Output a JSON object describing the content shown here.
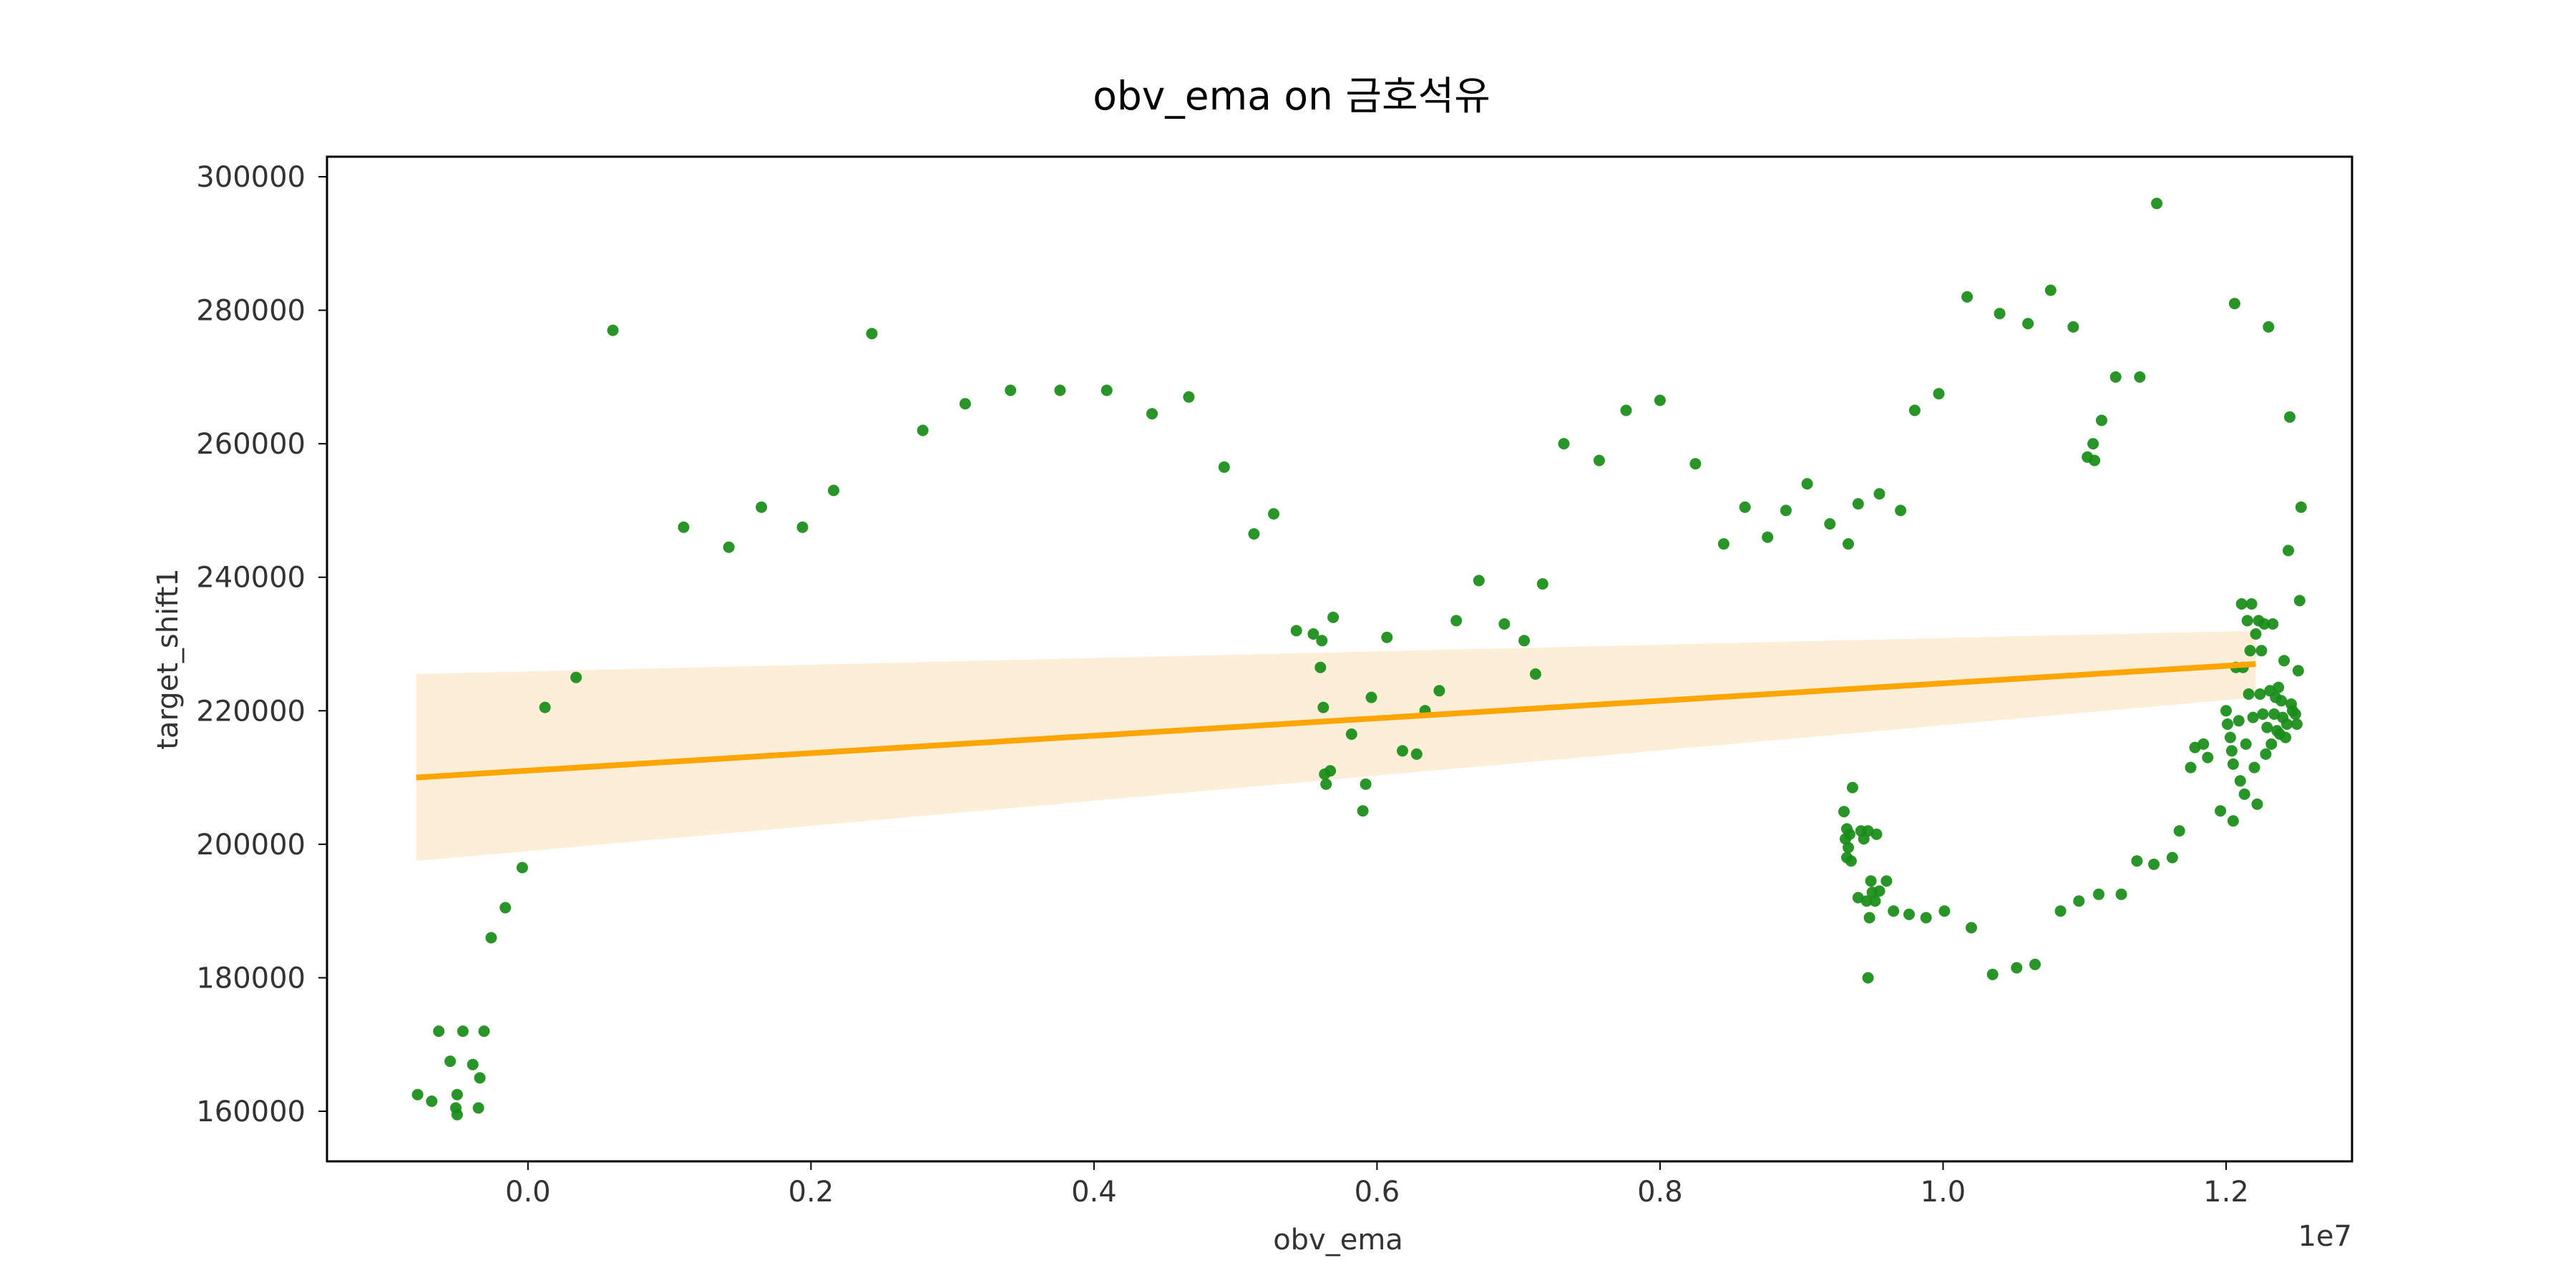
{
  "chart_data": {
    "type": "scatter",
    "title": "obv_ema on 금호석유",
    "xlabel": "obv_ema",
    "ylabel": "target_shift1",
    "x_offset_label": "1e7",
    "x_ticks": [
      0.0,
      0.2,
      0.4,
      0.6,
      0.8,
      1.0,
      1.2
    ],
    "x_tick_labels": [
      "0.0",
      "0.2",
      "0.4",
      "0.6",
      "0.8",
      "1.0",
      "1.2"
    ],
    "y_ticks": [
      160000,
      180000,
      200000,
      220000,
      240000,
      260000,
      280000,
      300000
    ],
    "y_tick_labels": [
      "160000",
      "180000",
      "200000",
      "220000",
      "240000",
      "260000",
      "280000",
      "300000"
    ],
    "xlim": [
      -0.142,
      1.289
    ],
    "ylim": [
      152500,
      303000
    ],
    "grid": false,
    "colors": {
      "points": "#178c17",
      "regression_line": "#ffa500",
      "confidence_band": "#fdebd0"
    },
    "regression": {
      "x": [
        -0.079,
        1.221
      ],
      "y": [
        210000,
        227000
      ],
      "ci_upper": [
        225500,
        232000
      ],
      "ci_lower": [
        197500,
        222000
      ]
    },
    "points": [
      [
        -0.078,
        162500
      ],
      [
        -0.068,
        161500
      ],
      [
        -0.063,
        172000
      ],
      [
        -0.055,
        167500
      ],
      [
        -0.051,
        160500
      ],
      [
        -0.05,
        159500
      ],
      [
        -0.05,
        162500
      ],
      [
        -0.046,
        172000
      ],
      [
        -0.039,
        167000
      ],
      [
        -0.035,
        160500
      ],
      [
        -0.034,
        165000
      ],
      [
        -0.031,
        172000
      ],
      [
        -0.026,
        186000
      ],
      [
        -0.016,
        190500
      ],
      [
        -0.004,
        196500
      ],
      [
        0.012,
        220500
      ],
      [
        0.034,
        225000
      ],
      [
        0.06,
        277000
      ],
      [
        0.11,
        247500
      ],
      [
        0.142,
        244500
      ],
      [
        0.165,
        250500
      ],
      [
        0.194,
        247500
      ],
      [
        0.216,
        253000
      ],
      [
        0.243,
        276500
      ],
      [
        0.279,
        262000
      ],
      [
        0.309,
        266000
      ],
      [
        0.341,
        268000
      ],
      [
        0.376,
        268000
      ],
      [
        0.409,
        268000
      ],
      [
        0.441,
        264500
      ],
      [
        0.467,
        267000
      ],
      [
        0.492,
        256500
      ],
      [
        0.513,
        246500
      ],
      [
        0.527,
        249500
      ],
      [
        0.543,
        232000
      ],
      [
        0.555,
        231500
      ],
      [
        0.56,
        226500
      ],
      [
        0.561,
        230500
      ],
      [
        0.562,
        220500
      ],
      [
        0.563,
        210500
      ],
      [
        0.564,
        209000
      ],
      [
        0.567,
        211000
      ],
      [
        0.569,
        234000
      ],
      [
        0.582,
        216500
      ],
      [
        0.59,
        205000
      ],
      [
        0.592,
        209000
      ],
      [
        0.596,
        222000
      ],
      [
        0.607,
        231000
      ],
      [
        0.618,
        214000
      ],
      [
        0.628,
        213500
      ],
      [
        0.634,
        220000
      ],
      [
        0.644,
        223000
      ],
      [
        0.656,
        233500
      ],
      [
        0.672,
        239500
      ],
      [
        0.69,
        233000
      ],
      [
        0.704,
        230500
      ],
      [
        0.712,
        225500
      ],
      [
        0.717,
        239000
      ],
      [
        0.732,
        260000
      ],
      [
        0.757,
        257500
      ],
      [
        0.776,
        265000
      ],
      [
        0.8,
        266500
      ],
      [
        0.825,
        257000
      ],
      [
        0.845,
        245000
      ],
      [
        0.86,
        250500
      ],
      [
        0.876,
        246000
      ],
      [
        0.889,
        250000
      ],
      [
        0.904,
        254000
      ],
      [
        0.92,
        248000
      ],
      [
        0.933,
        245000
      ],
      [
        0.94,
        251000
      ],
      [
        0.955,
        252500
      ],
      [
        0.97,
        250000
      ],
      [
        0.93,
        204900
      ],
      [
        0.931,
        200800
      ],
      [
        0.932,
        198000
      ],
      [
        0.932,
        202300
      ],
      [
        0.933,
        199500
      ],
      [
        0.934,
        201500
      ],
      [
        0.935,
        197500
      ],
      [
        0.936,
        208500
      ],
      [
        0.94,
        192000
      ],
      [
        0.942,
        202000
      ],
      [
        0.944,
        200800
      ],
      [
        0.946,
        191500
      ],
      [
        0.947,
        180000
      ],
      [
        0.947,
        202000
      ],
      [
        0.948,
        189000
      ],
      [
        0.949,
        194500
      ],
      [
        0.95,
        192800
      ],
      [
        0.952,
        191500
      ],
      [
        0.953,
        201500
      ],
      [
        0.955,
        193000
      ],
      [
        0.96,
        194500
      ],
      [
        0.965,
        190000
      ],
      [
        0.976,
        189500
      ],
      [
        0.988,
        189000
      ],
      [
        1.001,
        190000
      ],
      [
        1.02,
        187500
      ],
      [
        1.035,
        180500
      ],
      [
        1.052,
        181500
      ],
      [
        1.065,
        182000
      ],
      [
        1.083,
        190000
      ],
      [
        1.096,
        191500
      ],
      [
        1.11,
        192500
      ],
      [
        1.126,
        192500
      ],
      [
        1.137,
        197500
      ],
      [
        1.149,
        197000
      ],
      [
        1.162,
        198000
      ],
      [
        0.98,
        265000
      ],
      [
        0.997,
        267500
      ],
      [
        1.017,
        282000
      ],
      [
        1.04,
        279500
      ],
      [
        1.06,
        278000
      ],
      [
        1.076,
        283000
      ],
      [
        1.092,
        277500
      ],
      [
        1.102,
        258000
      ],
      [
        1.106,
        260000
      ],
      [
        1.107,
        257500
      ],
      [
        1.112,
        263500
      ],
      [
        1.122,
        270000
      ],
      [
        1.139,
        270000
      ],
      [
        1.151,
        296000
      ],
      [
        1.167,
        202000
      ],
      [
        1.175,
        211500
      ],
      [
        1.178,
        214500
      ],
      [
        1.184,
        215000
      ],
      [
        1.187,
        213000
      ],
      [
        1.196,
        205000
      ],
      [
        1.2,
        220000
      ],
      [
        1.201,
        218000
      ],
      [
        1.203,
        216000
      ],
      [
        1.204,
        214000
      ],
      [
        1.205,
        212000
      ],
      [
        1.205,
        203500
      ],
      [
        1.206,
        281000
      ],
      [
        1.207,
        226500
      ],
      [
        1.209,
        218500
      ],
      [
        1.21,
        209500
      ],
      [
        1.211,
        236000
      ],
      [
        1.212,
        226500
      ],
      [
        1.213,
        207500
      ],
      [
        1.214,
        215000
      ],
      [
        1.215,
        233500
      ],
      [
        1.216,
        222500
      ],
      [
        1.217,
        229000
      ],
      [
        1.218,
        236000
      ],
      [
        1.219,
        219000
      ],
      [
        1.22,
        211500
      ],
      [
        1.221,
        231500
      ],
      [
        1.222,
        206000
      ],
      [
        1.223,
        233500
      ],
      [
        1.224,
        222500
      ],
      [
        1.225,
        229000
      ],
      [
        1.226,
        219500
      ],
      [
        1.227,
        233000
      ],
      [
        1.228,
        213500
      ],
      [
        1.229,
        217500
      ],
      [
        1.23,
        277500
      ],
      [
        1.231,
        223000
      ],
      [
        1.232,
        215000
      ],
      [
        1.233,
        233000
      ],
      [
        1.234,
        219500
      ],
      [
        1.235,
        222000
      ],
      [
        1.236,
        217000
      ],
      [
        1.237,
        223500
      ],
      [
        1.238,
        216500
      ],
      [
        1.239,
        221500
      ],
      [
        1.24,
        219000
      ],
      [
        1.241,
        227500
      ],
      [
        1.242,
        216000
      ],
      [
        1.243,
        218000
      ],
      [
        1.244,
        244000
      ],
      [
        1.245,
        264000
      ],
      [
        1.246,
        221000
      ],
      [
        1.247,
        220000
      ],
      [
        1.249,
        219500
      ],
      [
        1.25,
        218000
      ],
      [
        1.251,
        226000
      ],
      [
        1.252,
        236500
      ],
      [
        1.253,
        250500
      ]
    ]
  }
}
